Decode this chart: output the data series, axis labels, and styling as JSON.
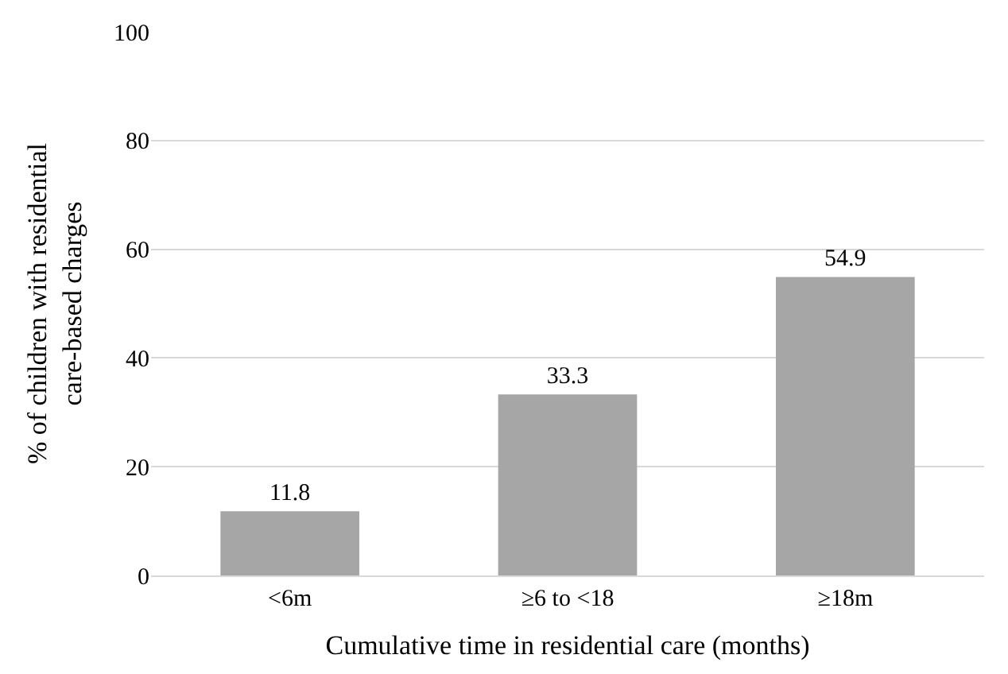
{
  "chart_data": {
    "type": "bar",
    "xlabel": "Cumulative time in residential care (months)",
    "ylabel": "% of children with residential\ncare-based charges",
    "categories": [
      "<6m",
      "≥6 to <18",
      "≥18m"
    ],
    "values": [
      11.8,
      33.3,
      54.9
    ],
    "color": "#a6a6a6",
    "ylim": [
      0,
      100
    ],
    "yticks": [
      0,
      20,
      40,
      60,
      80,
      100
    ],
    "grid": "y",
    "data_labels": true,
    "legend": false
  }
}
